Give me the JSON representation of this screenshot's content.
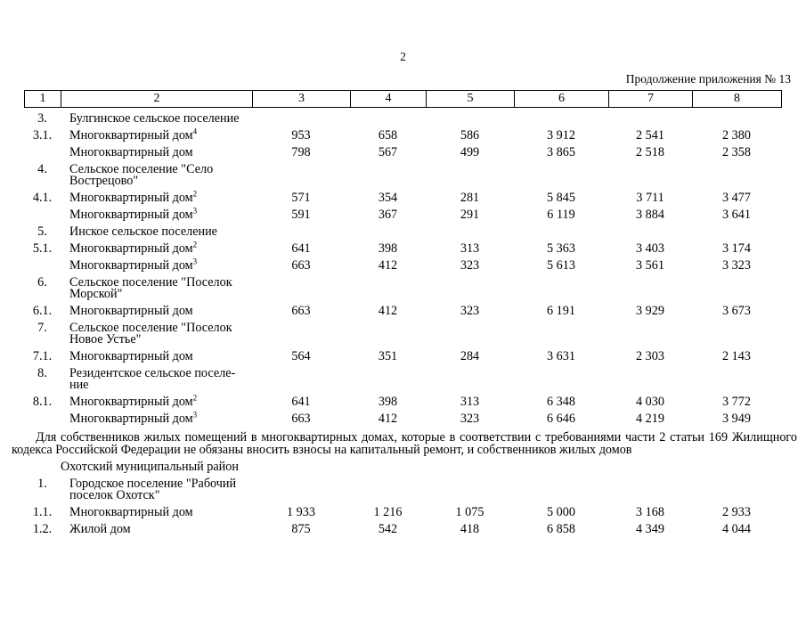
{
  "page": {
    "number": "2",
    "continuation": "Продолжение приложения № 13"
  },
  "table": {
    "column_numbers": [
      "1",
      "2",
      "3",
      "4",
      "5",
      "6",
      "7",
      "8"
    ],
    "rows_top": [
      {
        "num": "3.",
        "name_lines": [
          "Булгинское сельское поселение"
        ],
        "sup": "",
        "values": []
      },
      {
        "num": "3.1.",
        "name_lines": [
          "Многоквартирный дом"
        ],
        "sup": "4",
        "values": [
          "953",
          "658",
          "586",
          "3 912",
          "2 541",
          "2 380"
        ]
      },
      {
        "num": "",
        "name_lines": [
          "Многоквартирный дом"
        ],
        "sup": "",
        "values": [
          "798",
          "567",
          "499",
          "3 865",
          "2 518",
          "2 358"
        ]
      },
      {
        "num": "4.",
        "name_lines": [
          "Сельское поселение \"Село",
          "Вострецово\""
        ],
        "sup": "",
        "values": []
      },
      {
        "num": "4.1.",
        "name_lines": [
          "Многоквартирный дом"
        ],
        "sup": "2",
        "values": [
          "571",
          "354",
          "281",
          "5 845",
          "3 711",
          "3 477"
        ]
      },
      {
        "num": "",
        "name_lines": [
          "Многоквартирный дом"
        ],
        "sup": "3",
        "values": [
          "591",
          "367",
          "291",
          "6 119",
          "3 884",
          "3 641"
        ]
      },
      {
        "num": "5.",
        "name_lines": [
          "Инское сельское поселение"
        ],
        "sup": "",
        "values": []
      },
      {
        "num": "5.1.",
        "name_lines": [
          "Многоквартирный дом"
        ],
        "sup": "2",
        "values": [
          "641",
          "398",
          "313",
          "5 363",
          "3 403",
          "3 174"
        ]
      },
      {
        "num": "",
        "name_lines": [
          "Многоквартирный дом"
        ],
        "sup": "3",
        "values": [
          "663",
          "412",
          "323",
          "5 613",
          "3 561",
          "3 323"
        ]
      },
      {
        "num": "6.",
        "name_lines": [
          "Сельское поселение \"Поселок",
          "Морской\""
        ],
        "sup": "",
        "values": []
      },
      {
        "num": "6.1.",
        "name_lines": [
          "Многоквартирный дом"
        ],
        "sup": "",
        "values": [
          "663",
          "412",
          "323",
          "6 191",
          "3 929",
          "3 673"
        ]
      },
      {
        "num": "7.",
        "name_lines": [
          "Сельское поселение \"Поселок",
          "Новое Устье\""
        ],
        "sup": "",
        "values": []
      },
      {
        "num": "7.1.",
        "name_lines": [
          "Многоквартирный дом"
        ],
        "sup": "",
        "values": [
          "564",
          "351",
          "284",
          "3 631",
          "2 303",
          "2 143"
        ]
      },
      {
        "num": "8.",
        "name_lines": [
          "Резидентское сельское поселе-",
          "ние"
        ],
        "sup": "",
        "values": []
      },
      {
        "num": "8.1.",
        "name_lines": [
          "Многоквартирный дом"
        ],
        "sup": "2",
        "values": [
          "641",
          "398",
          "313",
          "6 348",
          "4 030",
          "3 772"
        ]
      },
      {
        "num": "",
        "name_lines": [
          "Многоквартирный дом"
        ],
        "sup": "3",
        "values": [
          "663",
          "412",
          "323",
          "6 646",
          "4 219",
          "3 949"
        ]
      }
    ],
    "rows_bottom": [
      {
        "num": "",
        "name_lines": [
          "Охотский муниципальный район"
        ],
        "sup": "",
        "values": [],
        "style": "district"
      },
      {
        "num": "1.",
        "name_lines": [
          "Городское поселение \"Рабочий",
          "поселок Охотск\""
        ],
        "sup": "",
        "values": []
      },
      {
        "num": "1.1.",
        "name_lines": [
          "Многоквартирный дом"
        ],
        "sup": "",
        "values": [
          "1 933",
          "1 216",
          "1 075",
          "5 000",
          "3 168",
          "2 933"
        ]
      },
      {
        "num": "1.2.",
        "name_lines": [
          "Жилой дом"
        ],
        "sup": "",
        "values": [
          "875",
          "542",
          "418",
          "6 858",
          "4 349",
          "4 044"
        ]
      }
    ]
  },
  "note": {
    "text": "Для собственников жилых помещений в многоквартирных домах, которые в соответствии с требованиями части 2 статьи 169 Жилищного кодекса Российской Федерации не обязаны вносить взносы на капитальный ремонт, и собственников жилых домов"
  }
}
